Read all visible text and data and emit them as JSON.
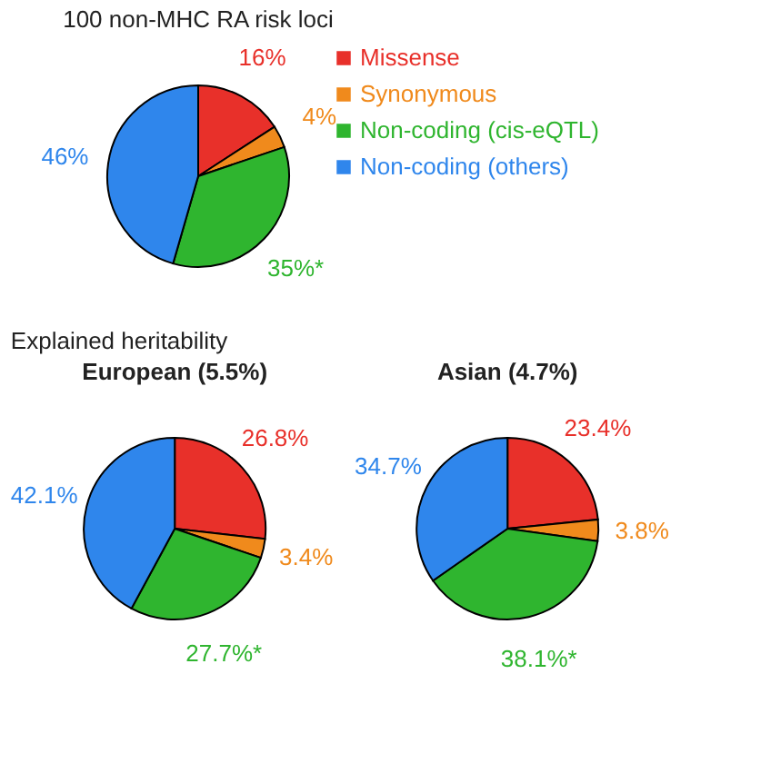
{
  "chart_data": [
    {
      "type": "pie",
      "title": "100 non-MHC RA risk loci",
      "categories": [
        "Missense",
        "Synonymous",
        "Non-coding (cis-eQTL)",
        "Non-coding (others)"
      ],
      "values": [
        16,
        4,
        35,
        46
      ],
      "colors": [
        "#e8302a",
        "#f08a1c",
        "#2fb52f",
        "#2f86ec"
      ],
      "value_labels": [
        "16%",
        "4%",
        "35%*",
        "46%"
      ],
      "legend": "right"
    },
    {
      "type": "pie",
      "title": "European (5.5%)",
      "annotations": [
        "Explained heritability"
      ],
      "categories": [
        null,
        null,
        null,
        null
      ],
      "values": [
        26.8,
        3.4,
        27.7,
        42.1
      ],
      "colors": [
        "#e8302a",
        "#f08a1c",
        "#2fb52f",
        "#2f86ec"
      ],
      "value_labels": [
        "26.8%",
        "3.4%",
        "27.7%*",
        "42.1%"
      ]
    },
    {
      "type": "pie",
      "title": "Asian (4.7%)",
      "categories": [
        null,
        null,
        null,
        null
      ],
      "values": [
        23.4,
        3.8,
        38.1,
        34.7
      ],
      "colors": [
        "#e8302a",
        "#f08a1c",
        "#2fb52f",
        "#2f86ec"
      ],
      "value_labels": [
        "23.4%",
        "3.8%",
        "38.1%*",
        "34.7%"
      ]
    }
  ]
}
